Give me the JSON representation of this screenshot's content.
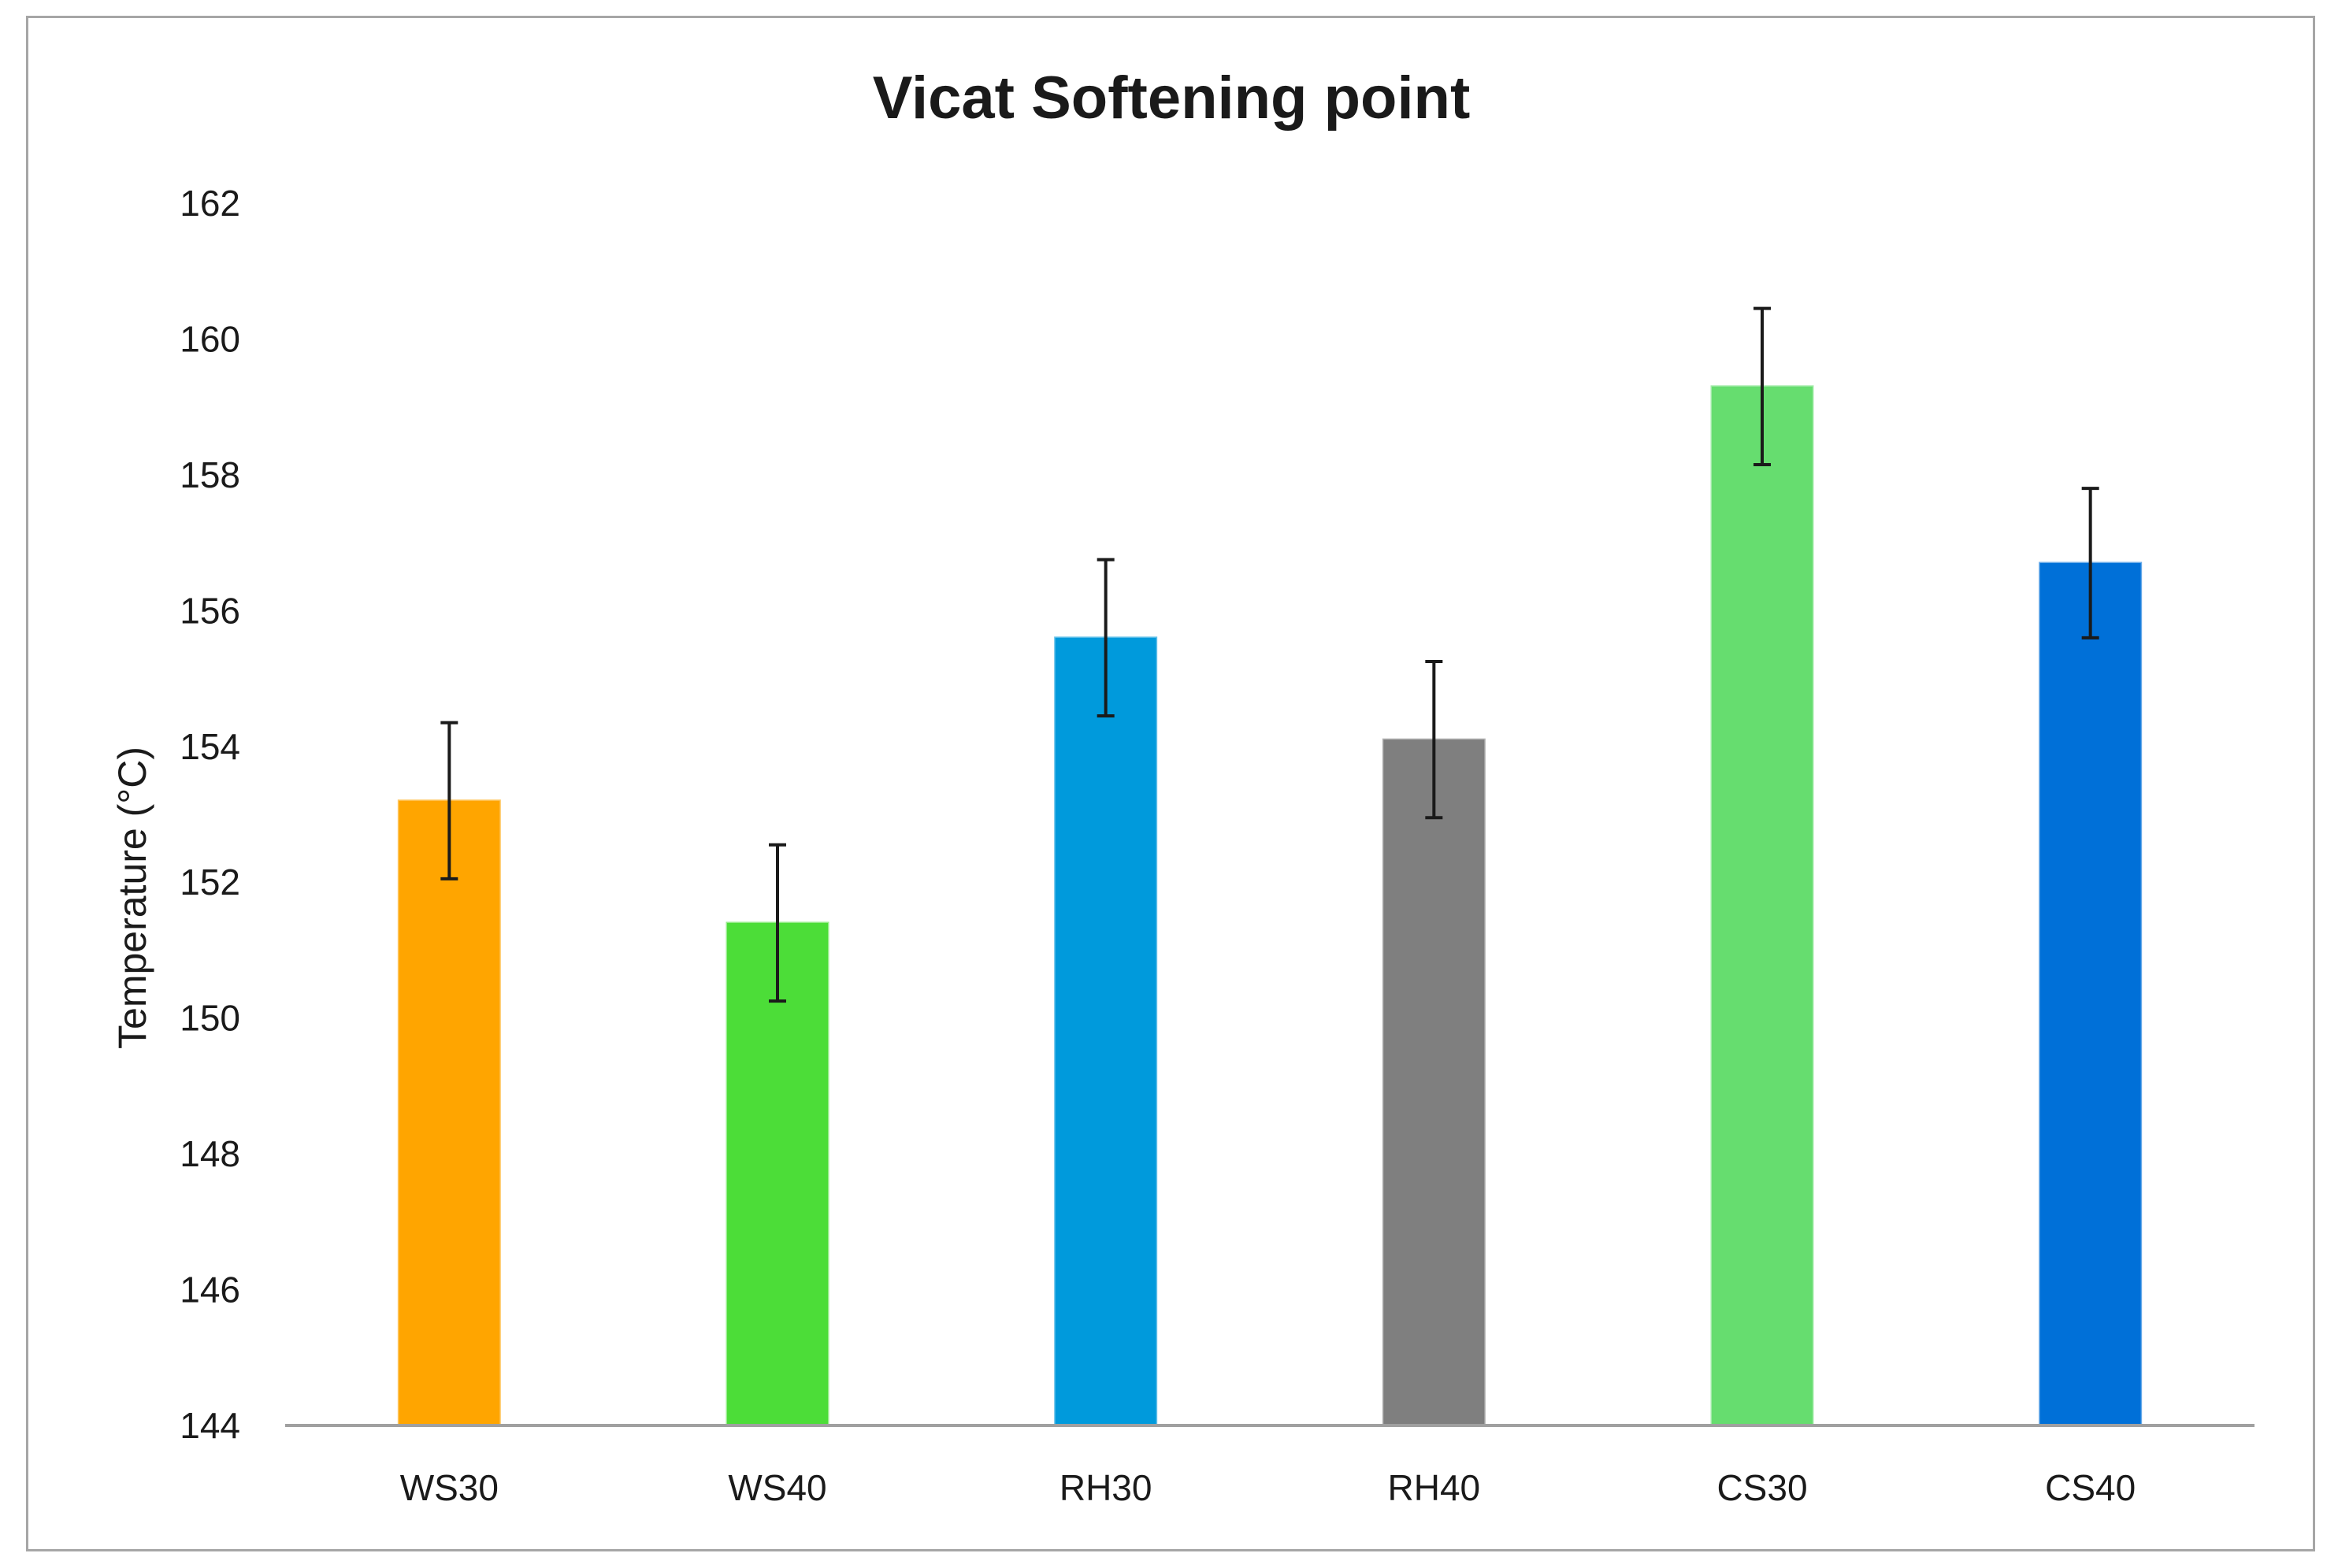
{
  "chart_data": {
    "type": "bar",
    "title": "Vicat Softening point",
    "xlabel": "",
    "ylabel": "Temperature (°C)",
    "ylim": [
      144,
      162
    ],
    "yticks": [
      144,
      146,
      148,
      150,
      152,
      154,
      156,
      158,
      160,
      162
    ],
    "grid": false,
    "legend": "none",
    "categories": [
      "WS30",
      "WS40",
      "RH30",
      "RH40",
      "CS30",
      "CS40"
    ],
    "values": [
      153.2,
      151.4,
      155.6,
      154.1,
      159.3,
      156.7
    ],
    "errors": [
      1.15,
      1.15,
      1.15,
      1.15,
      1.15,
      1.1
    ],
    "colors": [
      "#FFA500",
      "#4CDD38",
      "#009ADC",
      "#7F7F7F",
      "#66DD6F",
      "#0070D8"
    ],
    "error_bar_color": "#1a1a1a",
    "axis_color": "#A0A0A0"
  }
}
